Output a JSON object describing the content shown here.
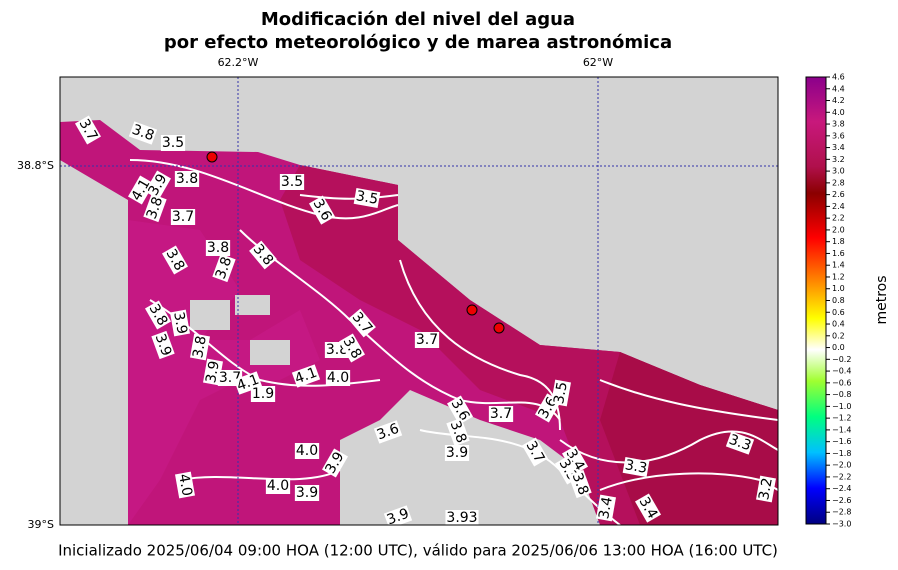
{
  "title": [
    "Modificación del nivel del agua",
    "por efecto meteorológico y de marea astronómica"
  ],
  "longitude_labels": [
    "62.2°W",
    "62°W"
  ],
  "latitude_labels": [
    "38.8°S",
    "39°S"
  ],
  "colorbar": {
    "label": "metros",
    "ticks": [
      "4.6",
      "4.4",
      "4.2",
      "4.0",
      "3.8",
      "3.6",
      "3.4",
      "3.2",
      "3.0",
      "2.8",
      "2.6",
      "2.4",
      "2.2",
      "2.0",
      "1.8",
      "1.6",
      "1.4",
      "1.2",
      "1.0",
      "0.8",
      "0.6",
      "0.4",
      "0.2",
      "0.0",
      "−0.2",
      "−0.4",
      "−0.6",
      "−0.8",
      "−1.0",
      "−1.2",
      "−1.4",
      "−1.6",
      "−1.8",
      "−2.0",
      "−2.2",
      "−2.4",
      "−2.6",
      "−2.8",
      "−3.0"
    ]
  },
  "contour_labels": [
    "3.7",
    "3.8",
    "3.5",
    "3.8",
    "4.1",
    "3.9",
    "3.8",
    "3.7",
    "3.5",
    "3.6",
    "3.5",
    "3.8",
    "3.8",
    "3.8",
    "3.8",
    "3.8",
    "3.9",
    "3.9",
    "3.8",
    "3.7",
    "3.8",
    "3.8",
    "3.7",
    "3.9",
    "3.7",
    "4.1",
    "1.9",
    "4.1",
    "4.0",
    "3.6",
    "3.8",
    "3.7",
    "3.6",
    "3.5",
    "3.6",
    "3.9",
    "3.7",
    "4.0",
    "3.9",
    "4.0",
    "4.0",
    "3.9",
    "3.4",
    "3.3",
    "3.8",
    "3.3",
    "3.3",
    "3.4",
    "3.4",
    "3.2",
    "3.9",
    "3.93"
  ],
  "footer": "Inicializado 2025/06/04 09:00 HOA (12:00 UTC), válido para 2025/06/06 13:00 HOA (16:00 UTC)"
}
